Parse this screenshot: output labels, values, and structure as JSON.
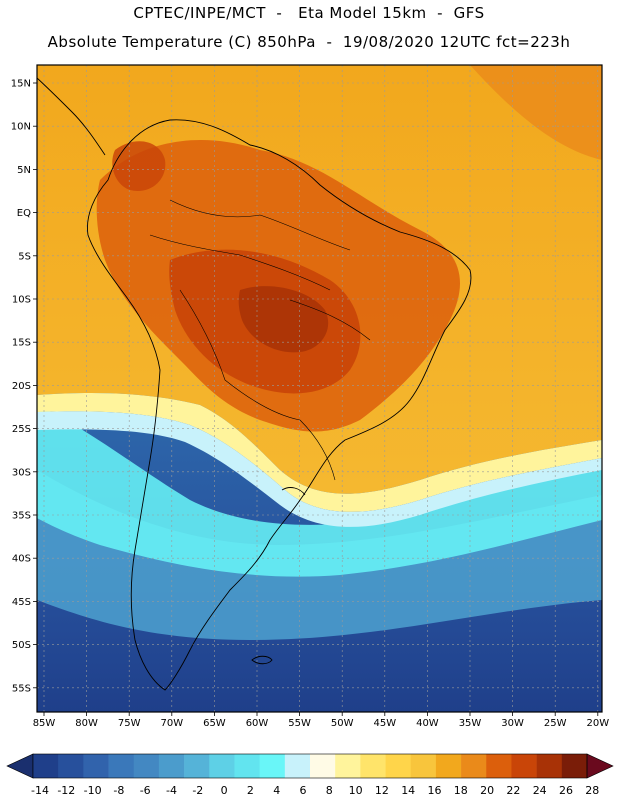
{
  "header": {
    "line1": "CPTEC/INPE/MCT  -   Eta Model 15km  -  GFS",
    "line2": "Absolute Temperature (C) 850hPa  -  19/08/2020 12UTC fct=223h"
  },
  "axes": {
    "lat_labels": [
      "15N",
      "10N",
      "5N",
      "EQ",
      "5S",
      "10S",
      "15S",
      "20S",
      "25S",
      "30S",
      "35S",
      "40S",
      "45S",
      "50S",
      "55S"
    ],
    "lon_labels": [
      "85W",
      "80W",
      "75W",
      "70W",
      "65W",
      "60W",
      "55W",
      "50W",
      "45W",
      "40W",
      "35W",
      "30W",
      "25W",
      "20W"
    ]
  },
  "colorbar": {
    "labels": [
      "-14",
      "-12",
      "-10",
      "-8",
      "-6",
      "-4",
      "-2",
      "0",
      "2",
      "4",
      "6",
      "8",
      "10",
      "12",
      "14",
      "16",
      "18",
      "20",
      "22",
      "24",
      "26",
      "28"
    ],
    "colors": [
      "#1f3f8a",
      "#27509c",
      "#3163ac",
      "#3a78ba",
      "#4388c2",
      "#4b9ccc",
      "#55b3d8",
      "#5ed0e6",
      "#62e4ef",
      "#69f6f8",
      "#c8f2fb",
      "#fffbe6",
      "#fff49c",
      "#ffe46a",
      "#ffd54a",
      "#f8c53c",
      "#f2a81d",
      "#ea8a1a",
      "#dc5f0c",
      "#c94508",
      "#a83206",
      "#7a1d08"
    ],
    "low_arrow_color": "#1a2f6e",
    "high_arrow_color": "#6a0a1e"
  },
  "palette": {
    "frame": "#000000",
    "grid": "#9a9a9a",
    "coast": "#000000"
  }
}
